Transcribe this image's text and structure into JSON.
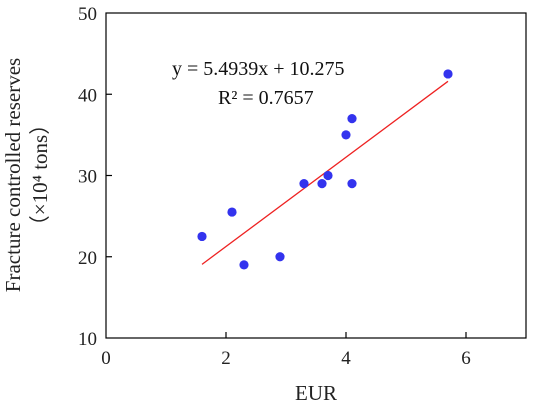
{
  "chart_data": {
    "type": "scatter",
    "xlabel": "EUR",
    "ylabel_line1": "Fracture controlled reserves",
    "ylabel_line2": "（×10⁴ tons）",
    "xlim": [
      0,
      7
    ],
    "ylim": [
      10,
      50
    ],
    "xticks": [
      0,
      2,
      4,
      6
    ],
    "yticks": [
      10,
      20,
      30,
      40,
      50
    ],
    "grid": false,
    "series": [
      {
        "color": "#3333ee",
        "points": [
          {
            "x": 1.6,
            "y": 22.5
          },
          {
            "x": 2.1,
            "y": 25.5
          },
          {
            "x": 2.3,
            "y": 19.0
          },
          {
            "x": 2.9,
            "y": 20.0
          },
          {
            "x": 3.3,
            "y": 29.0
          },
          {
            "x": 3.6,
            "y": 29.0
          },
          {
            "x": 3.7,
            "y": 30.0
          },
          {
            "x": 4.0,
            "y": 35.0
          },
          {
            "x": 4.1,
            "y": 37.0
          },
          {
            "x": 4.1,
            "y": 29.0
          },
          {
            "x": 5.7,
            "y": 42.5
          }
        ]
      }
    ],
    "trendline": {
      "color": "#ee2222",
      "slope": 5.4939,
      "intercept": 10.275,
      "x_range": [
        1.6,
        5.7
      ]
    },
    "annotations": {
      "equation": "y = 5.4939x + 10.275",
      "r_squared": "R² = 0.7657"
    }
  }
}
